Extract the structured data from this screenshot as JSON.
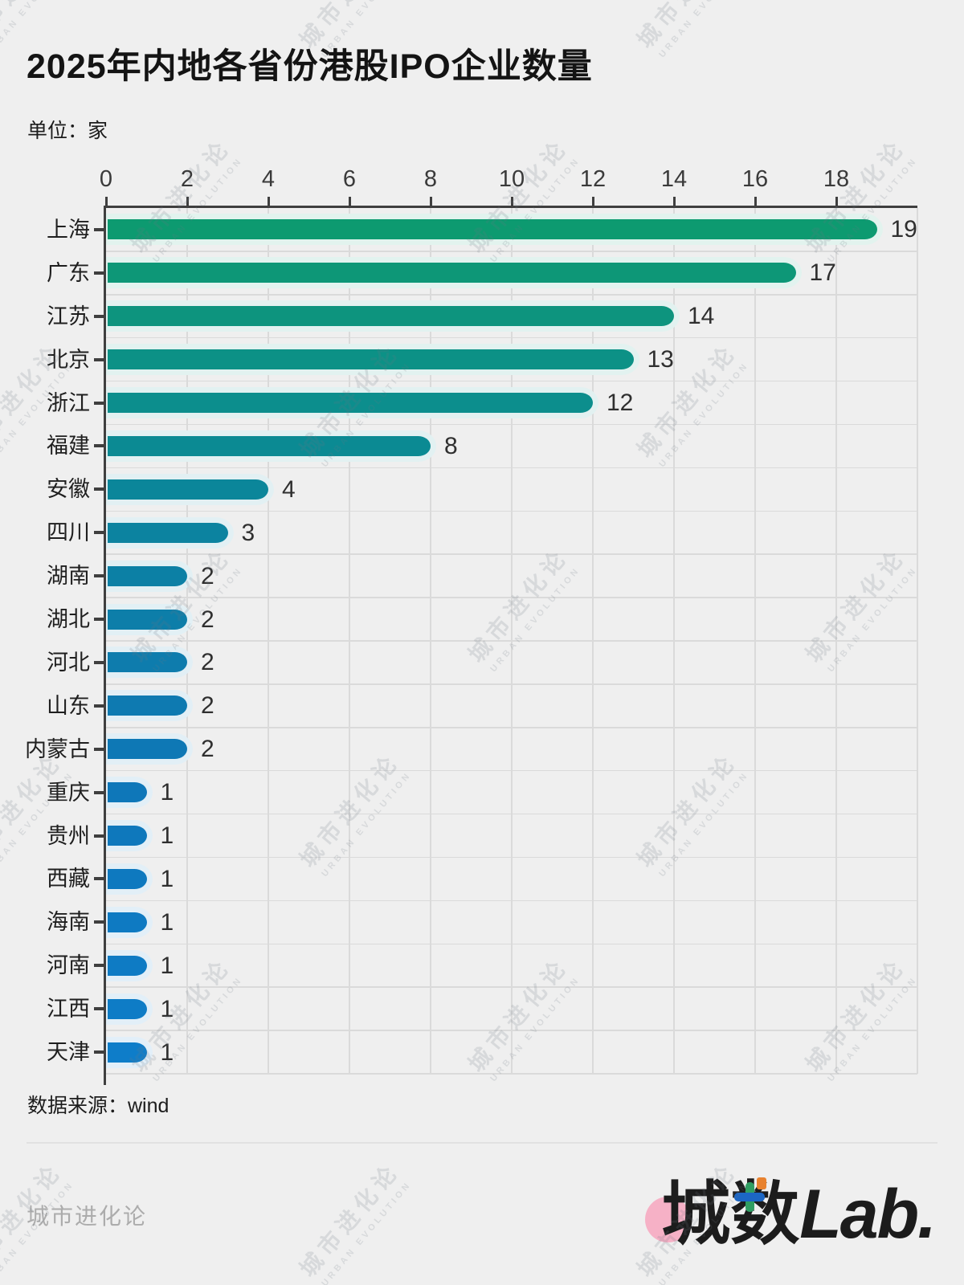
{
  "title": "2025年内地各省份港股IPO企业数量",
  "subtitle": "单位：家",
  "source": "数据来源：wind",
  "watermark": {
    "line1": "城市进化论",
    "line2": "URBAN EVOLUTION"
  },
  "footer": {
    "left": "城市进化论",
    "logo": {
      "char1": "城",
      "char2": "数",
      "suffix": "Lab."
    }
  },
  "chart_data": {
    "type": "bar",
    "orientation": "horizontal",
    "title": "2025年内地各省份港股IPO企业数量",
    "unit": "家",
    "categories": [
      "上海",
      "广东",
      "江苏",
      "北京",
      "浙江",
      "福建",
      "安徽",
      "四川",
      "湖南",
      "湖北",
      "河北",
      "山东",
      "内蒙古",
      "重庆",
      "贵州",
      "西藏",
      "海南",
      "河南",
      "江西",
      "天津"
    ],
    "values": [
      19,
      17,
      14,
      13,
      12,
      8,
      4,
      3,
      2,
      2,
      2,
      2,
      2,
      1,
      1,
      1,
      1,
      1,
      1,
      1
    ],
    "x_ticks": [
      0,
      2,
      4,
      6,
      8,
      10,
      12,
      14,
      16,
      18
    ],
    "xlim": [
      0,
      20
    ],
    "grid": true,
    "value_labels": true,
    "bar_colors": [
      "#0D9A70",
      "#0D9777",
      "#0D947E",
      "#0C9186",
      "#0C8E8D",
      "#0B8A93",
      "#0B869A",
      "#0C83A0",
      "#0C80A5",
      "#0D7EA9",
      "#0E7CAD",
      "#0E7AB1",
      "#0E78B5",
      "#0E77B9",
      "#0E78BC",
      "#0E79BF",
      "#0E7AC2",
      "#0E7BC4",
      "#0E7CC6",
      "#0E7DC9"
    ],
    "grid_color": "#DADADA",
    "axis_color": "#3f3f3f",
    "background_color": "#EFEFEF"
  }
}
